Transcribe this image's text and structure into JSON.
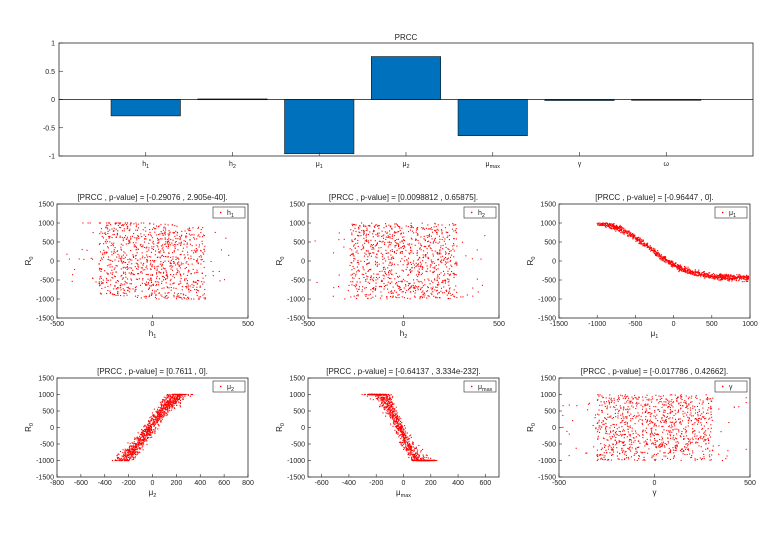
{
  "colors": {
    "bar": "#0072bd",
    "scatter": "#ff0000",
    "axis": "#262626"
  },
  "chart_data": [
    {
      "type": "bar",
      "title": "PRCC",
      "categories": [
        "h",
        "h",
        "μ",
        "μ",
        "μ",
        "γ",
        "ω"
      ],
      "category_subscripts": [
        "1",
        "2",
        "1",
        "2",
        "max",
        "",
        ""
      ],
      "values": [
        -0.29,
        0.01,
        -0.96,
        0.76,
        -0.64,
        -0.018,
        -0.01
      ],
      "ylim": [
        -1,
        1
      ],
      "yticks": [
        "1",
        "0.5",
        "0",
        "-0.5",
        "-1"
      ],
      "grid": false
    },
    {
      "type": "scatter",
      "title": "[PRCC , p-value] = [-0.29076 , 2.905e-40].",
      "xlabel": "h",
      "xlabel_sub": "1",
      "ylabel": "R",
      "ylabel_sub": "0",
      "legend": "h",
      "legend_sub": "1",
      "legend_position": "top-right",
      "xlim": [
        -500,
        500
      ],
      "ylim": [
        -1500,
        1500
      ],
      "xticks": [
        "-500",
        "0",
        "500"
      ],
      "yticks": [
        "1500",
        "1000",
        "500",
        "0",
        "-500",
        "-1000",
        "-1500"
      ],
      "trend": "weak negative",
      "n_points": 1000
    },
    {
      "type": "scatter",
      "title": "[PRCC , p-value] = [0.0098812 , 0.65875].",
      "xlabel": "h",
      "xlabel_sub": "2",
      "ylabel": "R",
      "ylabel_sub": "0",
      "legend": "h",
      "legend_sub": "2",
      "legend_position": "top-right",
      "xlim": [
        -500,
        500
      ],
      "ylim": [
        -1500,
        1500
      ],
      "xticks": [
        "-500",
        "0",
        "500"
      ],
      "yticks": [
        "1500",
        "1000",
        "500",
        "0",
        "-500",
        "-1000",
        "-1500"
      ],
      "trend": "none",
      "n_points": 1000
    },
    {
      "type": "scatter",
      "title": "[PRCC , p-value] = [-0.96447 , 0].",
      "xlabel": "μ",
      "xlabel_sub": "1",
      "ylabel": "R",
      "ylabel_sub": "0",
      "legend": "μ",
      "legend_sub": "1",
      "legend_position": "top-right",
      "xlim": [
        -1500,
        1000
      ],
      "ylim": [
        -1500,
        1500
      ],
      "xticks": [
        "-1500",
        "-1000",
        "-500",
        "0",
        "500",
        "1000"
      ],
      "yticks": [
        "1500",
        "1000",
        "500",
        "0",
        "-500",
        "-1000",
        "-1500"
      ],
      "trend": "strong negative curve",
      "n_points": 1000
    },
    {
      "type": "scatter",
      "title": "[PRCC , p-value] = [0.7611 , 0].",
      "xlabel": "μ",
      "xlabel_sub": "2",
      "ylabel": "R",
      "ylabel_sub": "0",
      "legend": "μ",
      "legend_sub": "2",
      "legend_position": "top-right",
      "xlim": [
        -800,
        800
      ],
      "ylim": [
        -1500,
        1500
      ],
      "xticks": [
        "-800",
        "-600",
        "-400",
        "-200",
        "0",
        "200",
        "400",
        "600",
        "800"
      ],
      "yticks": [
        "1500",
        "1000",
        "500",
        "0",
        "-500",
        "-1000",
        "-1500"
      ],
      "trend": "positive",
      "n_points": 1000
    },
    {
      "type": "scatter",
      "title": "[PRCC , p-value] = [-0.64137 , 3.334e-232].",
      "xlabel": "μ",
      "xlabel_sub": "max",
      "ylabel": "R",
      "ylabel_sub": "0",
      "legend": "μ",
      "legend_sub": "max",
      "legend_position": "top-right",
      "xlim": [
        -700,
        700
      ],
      "ylim": [
        -1500,
        1500
      ],
      "xticks": [
        "-600",
        "-400",
        "-200",
        "0",
        "200",
        "400",
        "600"
      ],
      "yticks": [
        "1500",
        "1000",
        "500",
        "0",
        "-500",
        "-1000",
        "-1500"
      ],
      "trend": "negative",
      "n_points": 1000
    },
    {
      "type": "scatter",
      "title": "[PRCC , p-value] = [-0.017786 , 0.42662].",
      "xlabel": "γ",
      "xlabel_sub": "",
      "ylabel": "R",
      "ylabel_sub": "0",
      "legend": "γ",
      "legend_sub": "",
      "legend_position": "top-right",
      "xlim": [
        -500,
        500
      ],
      "ylim": [
        -1500,
        1500
      ],
      "xticks": [
        "-500",
        "0",
        "500"
      ],
      "yticks": [
        "1500",
        "1000",
        "500",
        "0",
        "-500",
        "-1000",
        "-1500"
      ],
      "trend": "none",
      "n_points": 1000
    }
  ]
}
